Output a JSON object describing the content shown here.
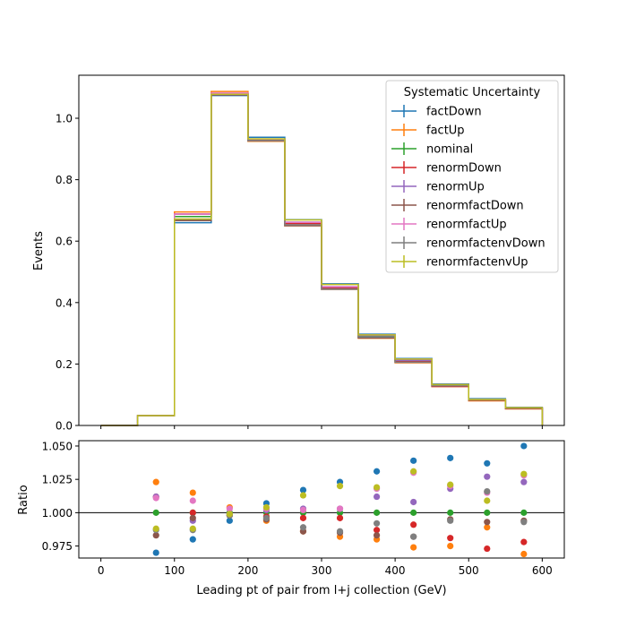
{
  "chart_data": [
    {
      "type": "step",
      "xlabel": "",
      "ylabel": "Events",
      "xlim": [
        -30,
        630
      ],
      "ylim": [
        0,
        1.14
      ],
      "yticks": [
        0.0,
        0.2,
        0.4,
        0.6,
        0.8,
        1.0
      ],
      "ytick_labels": [
        "0.0",
        "0.2",
        "0.4",
        "0.6",
        "0.8",
        "1.0"
      ],
      "grid": false,
      "legend": {
        "title": "Systematic Uncertainty",
        "placement": "top-right"
      },
      "bin_edges": [
        0,
        50,
        100,
        150,
        200,
        250,
        300,
        350,
        400,
        450,
        500,
        550,
        600
      ],
      "series": [
        {
          "name": "factDown",
          "color": "#1f77b4",
          "values": [
            0,
            0.032,
            0.66,
            1.074,
            0.938,
            0.67,
            0.461,
            0.297,
            0.218,
            0.135,
            0.087,
            0.059
          ]
        },
        {
          "name": "factUp",
          "color": "#ff7f0e",
          "values": [
            0,
            0.032,
            0.695,
            1.087,
            0.925,
            0.65,
            0.443,
            0.284,
            0.204,
            0.127,
            0.08,
            0.054
          ]
        },
        {
          "name": "nominal",
          "color": "#2ca02c",
          "values": [
            0,
            0.032,
            0.68,
            1.08,
            0.93,
            0.66,
            0.45,
            0.29,
            0.21,
            0.13,
            0.084,
            0.056
          ]
        },
        {
          "name": "renormDown",
          "color": "#d62728",
          "values": [
            0,
            0.032,
            0.688,
            1.08,
            0.927,
            0.657,
            0.448,
            0.286,
            0.208,
            0.127,
            0.082,
            0.055
          ]
        },
        {
          "name": "renormUp",
          "color": "#9467bd",
          "values": [
            0,
            0.032,
            0.688,
            1.079,
            0.932,
            0.662,
            0.451,
            0.293,
            0.212,
            0.132,
            0.085,
            0.057
          ]
        },
        {
          "name": "renormfactDown",
          "color": "#8c564b",
          "values": [
            0,
            0.032,
            0.667,
            1.076,
            0.927,
            0.65,
            0.443,
            0.285,
            0.206,
            0.129,
            0.083,
            0.056
          ]
        },
        {
          "name": "renormfactUp",
          "color": "#e377c2",
          "values": [
            0,
            0.032,
            0.688,
            1.082,
            0.932,
            0.661,
            0.452,
            0.295,
            0.216,
            0.133,
            0.085,
            0.058
          ]
        },
        {
          "name": "renormfactenvDown",
          "color": "#7f7f7f",
          "values": [
            0,
            0.032,
            0.671,
            1.078,
            0.927,
            0.653,
            0.444,
            0.288,
            0.206,
            0.129,
            0.083,
            0.056
          ]
        },
        {
          "name": "renormfactenvUp",
          "color": "#bcbd22",
          "values": [
            0,
            0.032,
            0.672,
            1.078,
            0.933,
            0.669,
            0.459,
            0.295,
            0.216,
            0.133,
            0.085,
            0.058
          ]
        }
      ]
    },
    {
      "type": "scatter",
      "xlabel": "Leading pt of pair from l+j collection (GeV)",
      "ylabel": "Ratio",
      "xlim": [
        -30,
        630
      ],
      "ylim": [
        0.966,
        1.054
      ],
      "xticks": [
        0,
        100,
        200,
        300,
        400,
        500,
        600
      ],
      "xtick_labels": [
        "0",
        "100",
        "200",
        "300",
        "400",
        "500",
        "600"
      ],
      "yticks": [
        0.975,
        1.0,
        1.025,
        1.05
      ],
      "ytick_labels": [
        "0.975",
        "1.000",
        "1.025",
        "1.050"
      ],
      "reference_line": 1.0,
      "grid": false,
      "x": [
        75,
        125,
        175,
        225,
        275,
        325,
        375,
        425,
        475,
        525,
        575
      ],
      "series": [
        {
          "name": "factDown",
          "color": "#1f77b4",
          "values": [
            0.97,
            0.98,
            0.994,
            1.007,
            1.017,
            1.023,
            1.031,
            1.039,
            1.041,
            1.037,
            1.05
          ]
        },
        {
          "name": "factUp",
          "color": "#ff7f0e",
          "values": [
            1.023,
            1.015,
            1.004,
            0.994,
            0.986,
            0.982,
            0.98,
            0.974,
            0.975,
            0.989,
            0.969
          ]
        },
        {
          "name": "nominal",
          "color": "#2ca02c",
          "values": [
            1.0,
            1.0,
            1.0,
            1.0,
            1.0,
            1.0,
            1.0,
            1.0,
            1.0,
            1.0,
            1.0
          ]
        },
        {
          "name": "renormDown",
          "color": "#d62728",
          "values": [
            1.012,
            1.0,
            0.998,
            0.997,
            0.996,
            0.996,
            0.987,
            0.991,
            0.981,
            0.973,
            0.978
          ]
        },
        {
          "name": "renormUp",
          "color": "#9467bd",
          "values": [
            1.012,
            0.994,
            0.999,
            1.002,
            1.003,
            1.003,
            1.012,
            1.008,
            1.018,
            1.027,
            1.023
          ]
        },
        {
          "name": "renormfactDown",
          "color": "#8c564b",
          "values": [
            0.983,
            0.996,
            0.998,
            0.995,
            0.986,
            0.985,
            0.983,
            0.982,
            0.995,
            0.993,
            0.994
          ]
        },
        {
          "name": "renormfactUp",
          "color": "#e377c2",
          "values": [
            1.011,
            1.009,
            1.003,
            1.003,
            1.002,
            1.003,
            1.018,
            1.03,
            1.02,
            1.015,
            1.028
          ]
        },
        {
          "name": "renormfactenvDown",
          "color": "#7f7f7f",
          "values": [
            0.987,
            0.987,
            0.998,
            0.996,
            0.989,
            0.986,
            0.992,
            0.982,
            0.994,
            1.016,
            0.993
          ]
        },
        {
          "name": "renormfactenvUp",
          "color": "#bcbd22",
          "values": [
            0.988,
            0.988,
            0.999,
            1.004,
            1.013,
            1.02,
            1.019,
            1.031,
            1.021,
            1.009,
            1.029
          ]
        }
      ]
    }
  ]
}
